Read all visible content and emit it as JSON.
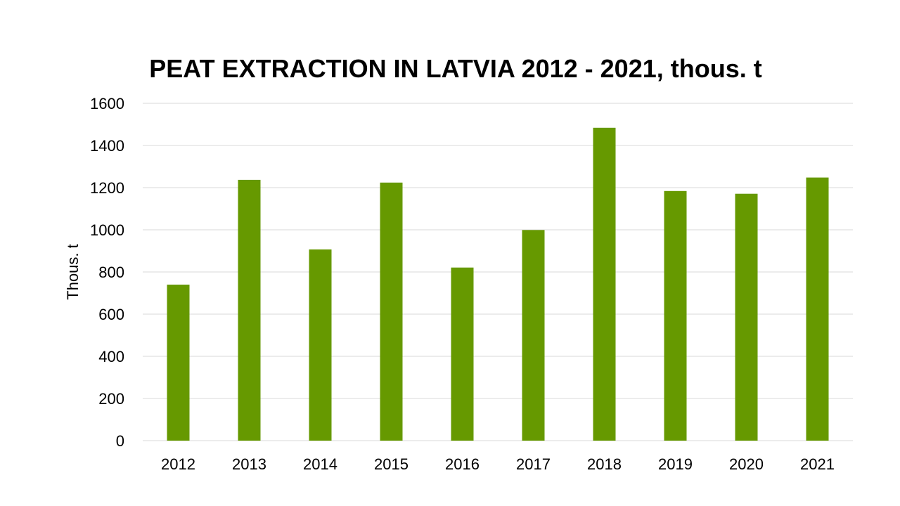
{
  "chart_data": {
    "type": "bar",
    "title": "PEAT EXTRACTION IN LATVIA 2012 - 2021, thous. t",
    "xlabel": "",
    "ylabel": "Thous. t",
    "categories": [
      "2012",
      "2013",
      "2014",
      "2015",
      "2016",
      "2017",
      "2018",
      "2019",
      "2020",
      "2021"
    ],
    "values": [
      740,
      1237,
      907,
      1224,
      821,
      999,
      1484,
      1184,
      1171,
      1248
    ],
    "ylim": [
      0,
      1600
    ],
    "yticks": [
      "0",
      "200",
      "400",
      "600",
      "800",
      "1000",
      "1200",
      "1400",
      "1600"
    ],
    "grid": true,
    "legend": "none",
    "bar_color": "#669900",
    "grid_color": "#d9d9d9"
  }
}
